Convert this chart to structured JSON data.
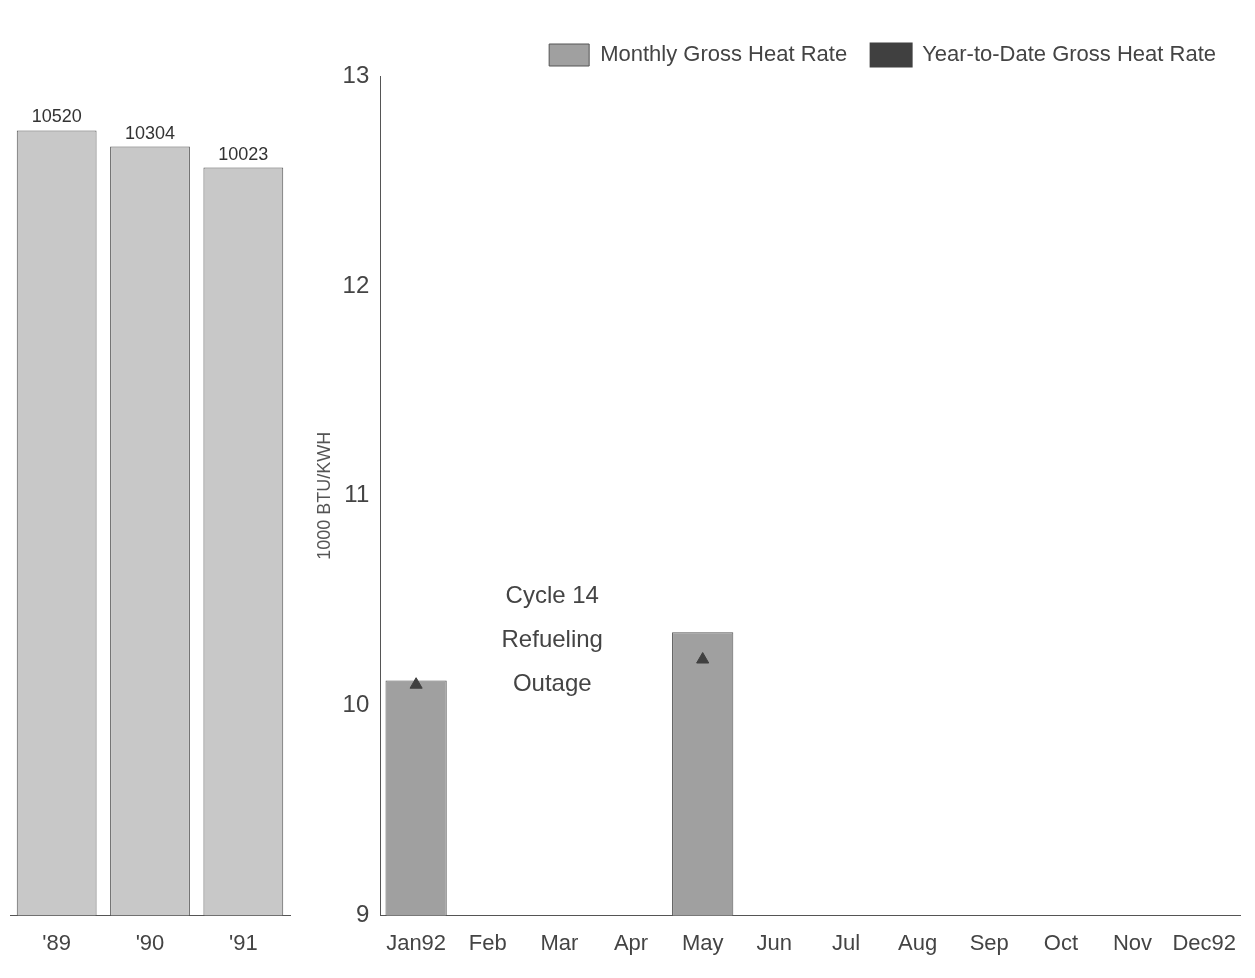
{
  "chart_data": [
    {
      "type": "bar",
      "categories": [
        "'89",
        "'90",
        "'91"
      ],
      "values": [
        10520,
        10304,
        10023
      ],
      "color": "#c8c8c8",
      "data_labels": true,
      "tick_labels": "x",
      "grid": false,
      "legend": false
    },
    {
      "type": "bar",
      "ylabel": "1000 BTU/KWH",
      "categories": [
        "Jan92",
        "Feb",
        "Mar",
        "Apr",
        "May",
        "Jun",
        "Jul",
        "Aug",
        "Sep",
        "Oct",
        "Nov",
        "Dec92"
      ],
      "series": [
        {
          "name": "Monthly Gross Heat Rate",
          "color": "#a0a0a0",
          "values": [
            10.12,
            null,
            null,
            null,
            10.35,
            null,
            null,
            null,
            null,
            null,
            null,
            null
          ]
        },
        {
          "name": "Year-to-Date Gross Heat Rate",
          "type": "scatter",
          "color": "#404040",
          "values": [
            10.1,
            null,
            null,
            null,
            10.22,
            null,
            null,
            null,
            null,
            null,
            null,
            null
          ]
        }
      ],
      "ylim": [
        9,
        13
      ],
      "yticks": [
        9,
        10,
        11,
        12,
        13
      ],
      "grid": false,
      "legend": "top right",
      "marker": "triangle",
      "annotations": [
        "Cycle 14\nRefueling\nOutage"
      ]
    }
  ]
}
